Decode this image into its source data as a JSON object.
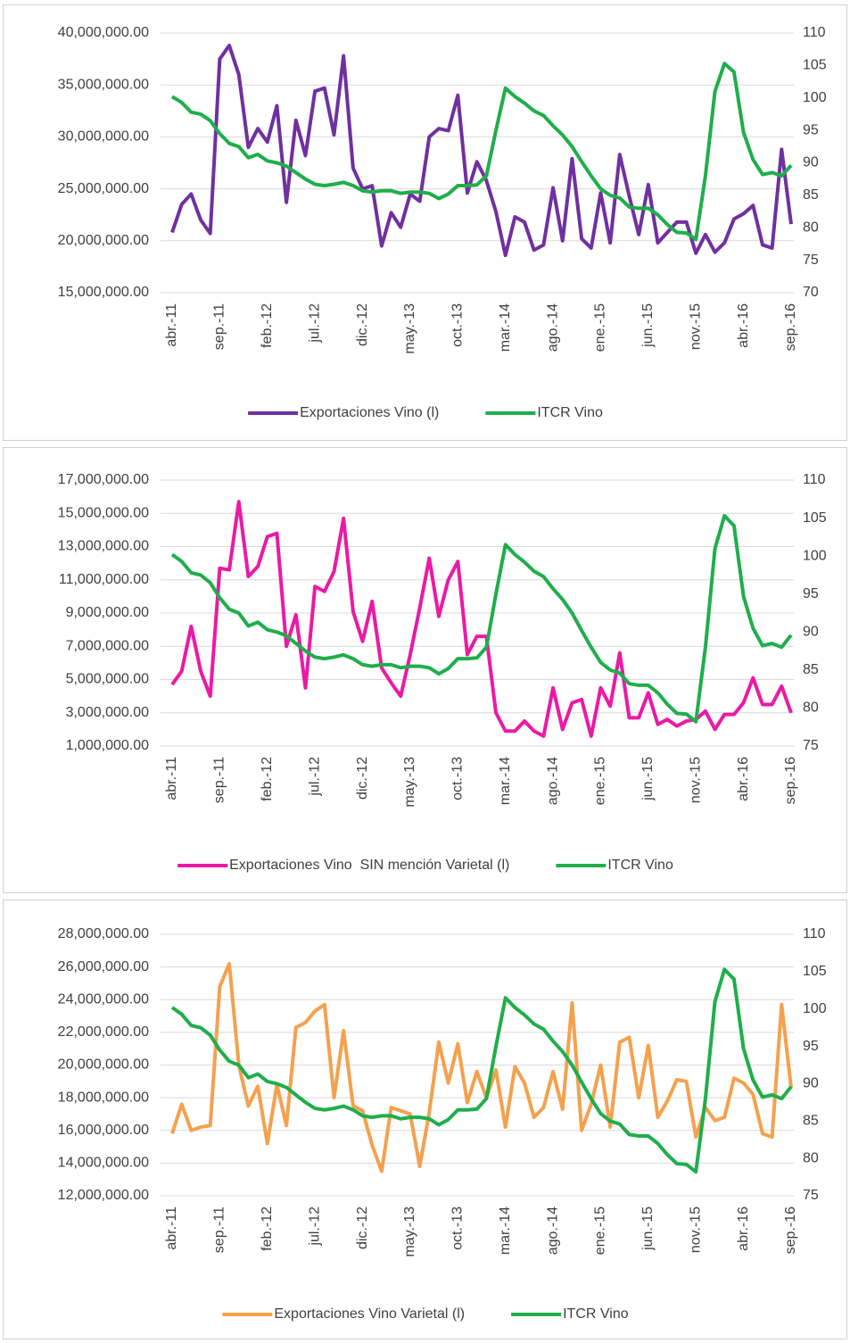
{
  "chart_data": [
    {
      "type": "line",
      "categories": [
        "abr.-11",
        null,
        null,
        null,
        null,
        "sep.-11",
        null,
        null,
        null,
        null,
        "feb.-12",
        null,
        null,
        null,
        null,
        "jul.-12",
        null,
        null,
        null,
        null,
        "dic.-12",
        null,
        null,
        null,
        null,
        "may.-13",
        null,
        null,
        null,
        null,
        "oct.-13",
        null,
        null,
        null,
        null,
        "mar.-14",
        null,
        null,
        null,
        null,
        "ago.-14",
        null,
        null,
        null,
        null,
        "ene.-15",
        null,
        null,
        null,
        null,
        "jun.-15",
        null,
        null,
        null,
        null,
        "nov.-15",
        null,
        null,
        null,
        null,
        "abr.-16",
        null,
        null,
        null,
        null,
        "sep.-16"
      ],
      "ylim": [
        15000000,
        40000000
      ],
      "yticks": [
        {
          "value": 15000000,
          "label": "15,000,000.00"
        },
        {
          "value": 20000000,
          "label": "20,000,000.00"
        },
        {
          "value": 25000000,
          "label": "25,000,000.00"
        },
        {
          "value": 30000000,
          "label": "30,000,000.00"
        },
        {
          "value": 35000000,
          "label": "35,000,000.00"
        },
        {
          "value": 40000000,
          "label": "40,000,000.00"
        }
      ],
      "y2lim": [
        70,
        110
      ],
      "y2ticks": [
        70,
        75,
        80,
        85,
        90,
        95,
        100,
        105,
        110
      ],
      "grid": true,
      "legend": "bottom",
      "series": [
        {
          "name": "Exportaciones Vino (l)",
          "color": "#7030a0",
          "values": [
            20800000,
            23500000,
            24500000,
            22000000,
            20700000,
            37500000,
            38800000,
            36000000,
            29000000,
            30800000,
            29500000,
            33000000,
            23700000,
            31600000,
            28200000,
            34400000,
            34700000,
            30200000,
            37800000,
            27000000,
            25000000,
            25300000,
            19500000,
            22700000,
            21300000,
            24500000,
            23800000,
            30000000,
            30800000,
            30600000,
            34000000,
            24600000,
            27600000,
            25800000,
            22800000,
            18600000,
            22300000,
            21800000,
            19100000,
            19600000,
            25100000,
            20000000,
            27900000,
            20200000,
            19300000,
            24600000,
            19800000,
            28300000,
            24300000,
            20600000,
            25400000,
            19800000,
            20800000,
            21800000,
            21800000,
            18800000,
            20600000,
            18900000,
            19800000,
            22100000,
            22600000,
            23400000,
            19600000,
            19300000,
            28800000,
            21600000
          ]
        },
        {
          "name": "ITCR Vino",
          "color": "#1fae4b",
          "axis": "y2",
          "values": [
            100.2,
            99.3,
            97.8,
            97.5,
            96.5,
            94.5,
            93,
            92.5,
            90.8,
            91.3,
            90.3,
            90,
            89.5,
            88.5,
            87.5,
            86.7,
            86.5,
            86.7,
            87,
            86.5,
            85.7,
            85.5,
            85.7,
            85.7,
            85.3,
            85.5,
            85.5,
            85.3,
            84.5,
            85.2,
            86.5,
            86.5,
            86.6,
            88,
            95,
            101.5,
            100.2,
            99.2,
            98,
            97.3,
            95.7,
            94.3,
            92.5,
            90.2,
            88,
            86,
            85,
            84.6,
            83.2,
            83,
            83,
            82,
            80.5,
            79.3,
            79.2,
            78.2,
            88,
            101,
            105.3,
            104,
            94.7,
            90.5,
            88.2,
            88.5,
            88,
            89.6
          ]
        }
      ]
    },
    {
      "type": "line",
      "categories": [
        "abr.-11",
        null,
        null,
        null,
        null,
        "sep.-11",
        null,
        null,
        null,
        null,
        "feb.-12",
        null,
        null,
        null,
        null,
        "jul.-12",
        null,
        null,
        null,
        null,
        "dic.-12",
        null,
        null,
        null,
        null,
        "may.-13",
        null,
        null,
        null,
        null,
        "oct.-13",
        null,
        null,
        null,
        null,
        "mar.-14",
        null,
        null,
        null,
        null,
        "ago.-14",
        null,
        null,
        null,
        null,
        "ene.-15",
        null,
        null,
        null,
        null,
        "jun.-15",
        null,
        null,
        null,
        null,
        "nov.-15",
        null,
        null,
        null,
        null,
        "abr.-16",
        null,
        null,
        null,
        null,
        "sep.-16"
      ],
      "ylim": [
        1000000,
        17000000
      ],
      "yticks": [
        {
          "value": 1000000,
          "label": "1,000,000.00"
        },
        {
          "value": 3000000,
          "label": "3,000,000.00"
        },
        {
          "value": 5000000,
          "label": "5,000,000.00"
        },
        {
          "value": 7000000,
          "label": "7,000,000.00"
        },
        {
          "value": 9000000,
          "label": "9,000,000.00"
        },
        {
          "value": 11000000,
          "label": "11,000,000.00"
        },
        {
          "value": 13000000,
          "label": "13,000,000.00"
        },
        {
          "value": 15000000,
          "label": "15,000,000.00"
        },
        {
          "value": 17000000,
          "label": "17,000,000.00"
        }
      ],
      "y2lim": [
        75,
        110
      ],
      "y2ticks": [
        75,
        80,
        85,
        90,
        95,
        100,
        105,
        110
      ],
      "grid": true,
      "legend": "bottom",
      "series": [
        {
          "name": "Exportaciones Vino  SIN mención Varietal (l)",
          "color": "#ea1aa5",
          "values": [
            4700000,
            5500000,
            8200000,
            5500000,
            4000000,
            11700000,
            11600000,
            15700000,
            11200000,
            11800000,
            13600000,
            13800000,
            7000000,
            8900000,
            4500000,
            10600000,
            10300000,
            11500000,
            14700000,
            9100000,
            7300000,
            9700000,
            5700000,
            4800000,
            4000000,
            6500000,
            9300000,
            12300000,
            8800000,
            11000000,
            12100000,
            6500000,
            7600000,
            7600000,
            3000000,
            1900000,
            1900000,
            2500000,
            1900000,
            1600000,
            4500000,
            2000000,
            3600000,
            3800000,
            1600000,
            4500000,
            3400000,
            6600000,
            2700000,
            2700000,
            4200000,
            2300000,
            2600000,
            2200000,
            2500000,
            2600000,
            3100000,
            2000000,
            2900000,
            2900000,
            3600000,
            5100000,
            3500000,
            3500000,
            4600000,
            3000000
          ]
        },
        {
          "name": "ITCR Vino",
          "color": "#1fae4b",
          "axis": "y2",
          "values": [
            100.2,
            99.3,
            97.8,
            97.5,
            96.5,
            94.5,
            93,
            92.5,
            90.8,
            91.3,
            90.3,
            90,
            89.5,
            88.5,
            87.5,
            86.7,
            86.5,
            86.7,
            87,
            86.5,
            85.7,
            85.5,
            85.7,
            85.7,
            85.3,
            85.5,
            85.5,
            85.3,
            84.5,
            85.2,
            86.5,
            86.5,
            86.6,
            88,
            95,
            101.5,
            100.2,
            99.2,
            98,
            97.3,
            95.7,
            94.3,
            92.5,
            90.2,
            88,
            86,
            85,
            84.6,
            83.2,
            83,
            83,
            82,
            80.5,
            79.3,
            79.2,
            78.2,
            88,
            101,
            105.3,
            104,
            94.7,
            90.5,
            88.2,
            88.5,
            88,
            89.6
          ]
        }
      ]
    },
    {
      "type": "line",
      "categories": [
        "abr.-11",
        null,
        null,
        null,
        null,
        "sep.-11",
        null,
        null,
        null,
        null,
        "feb.-12",
        null,
        null,
        null,
        null,
        "jul.-12",
        null,
        null,
        null,
        null,
        "dic.-12",
        null,
        null,
        null,
        null,
        "may.-13",
        null,
        null,
        null,
        null,
        "oct.-13",
        null,
        null,
        null,
        null,
        "mar.-14",
        null,
        null,
        null,
        null,
        "ago.-14",
        null,
        null,
        null,
        null,
        "ene.-15",
        null,
        null,
        null,
        null,
        "jun.-15",
        null,
        null,
        null,
        null,
        "nov.-15",
        null,
        null,
        null,
        null,
        "abr.-16",
        null,
        null,
        null,
        null,
        "sep.-16"
      ],
      "ylim": [
        12000000,
        28000000
      ],
      "yticks": [
        {
          "value": 12000000,
          "label": "12,000,000.00"
        },
        {
          "value": 14000000,
          "label": "14,000,000.00"
        },
        {
          "value": 16000000,
          "label": "16,000,000.00"
        },
        {
          "value": 18000000,
          "label": "18,000,000.00"
        },
        {
          "value": 20000000,
          "label": "20,000,000.00"
        },
        {
          "value": 22000000,
          "label": "22,000,000.00"
        },
        {
          "value": 24000000,
          "label": "24,000,000.00"
        },
        {
          "value": 26000000,
          "label": "26,000,000.00"
        },
        {
          "value": 28000000,
          "label": "28,000,000.00"
        }
      ],
      "y2lim": [
        75,
        110
      ],
      "y2ticks": [
        75,
        80,
        85,
        90,
        95,
        100,
        105,
        110
      ],
      "grid": true,
      "legend": "bottom",
      "series": [
        {
          "name": "Exportaciones Vino Varietal (l)",
          "color": "#f4a14e",
          "values": [
            15800000,
            17600000,
            16000000,
            16200000,
            16300000,
            24800000,
            26200000,
            20000000,
            17500000,
            18700000,
            15200000,
            18800000,
            16300000,
            22300000,
            22600000,
            23300000,
            23700000,
            18000000,
            22100000,
            17500000,
            17200000,
            15100000,
            13500000,
            17400000,
            17200000,
            17000000,
            13800000,
            17100000,
            21400000,
            18900000,
            21300000,
            17700000,
            19600000,
            18000000,
            19700000,
            16200000,
            19900000,
            18900000,
            16800000,
            17400000,
            19600000,
            17300000,
            23800000,
            16000000,
            17600000,
            20000000,
            16200000,
            21400000,
            21700000,
            18000000,
            21200000,
            16800000,
            17800000,
            19100000,
            19000000,
            15600000,
            17400000,
            16600000,
            16800000,
            19200000,
            18900000,
            18200000,
            15800000,
            15600000,
            23700000,
            18600000
          ]
        },
        {
          "name": "ITCR Vino",
          "color": "#1fae4b",
          "axis": "y2",
          "values": [
            100.2,
            99.3,
            97.8,
            97.5,
            96.5,
            94.5,
            93,
            92.5,
            90.8,
            91.3,
            90.3,
            90,
            89.5,
            88.5,
            87.5,
            86.7,
            86.5,
            86.7,
            87,
            86.5,
            85.7,
            85.5,
            85.7,
            85.7,
            85.3,
            85.5,
            85.5,
            85.3,
            84.5,
            85.2,
            86.5,
            86.5,
            86.6,
            88,
            95,
            101.5,
            100.2,
            99.2,
            98,
            97.3,
            95.7,
            94.3,
            92.5,
            90.2,
            88,
            86,
            85,
            84.6,
            83.2,
            83,
            83,
            82,
            80.5,
            79.3,
            79.2,
            78.2,
            88,
            101,
            105.3,
            104,
            94.7,
            90.5,
            88.2,
            88.5,
            88,
            89.6
          ]
        }
      ]
    }
  ]
}
